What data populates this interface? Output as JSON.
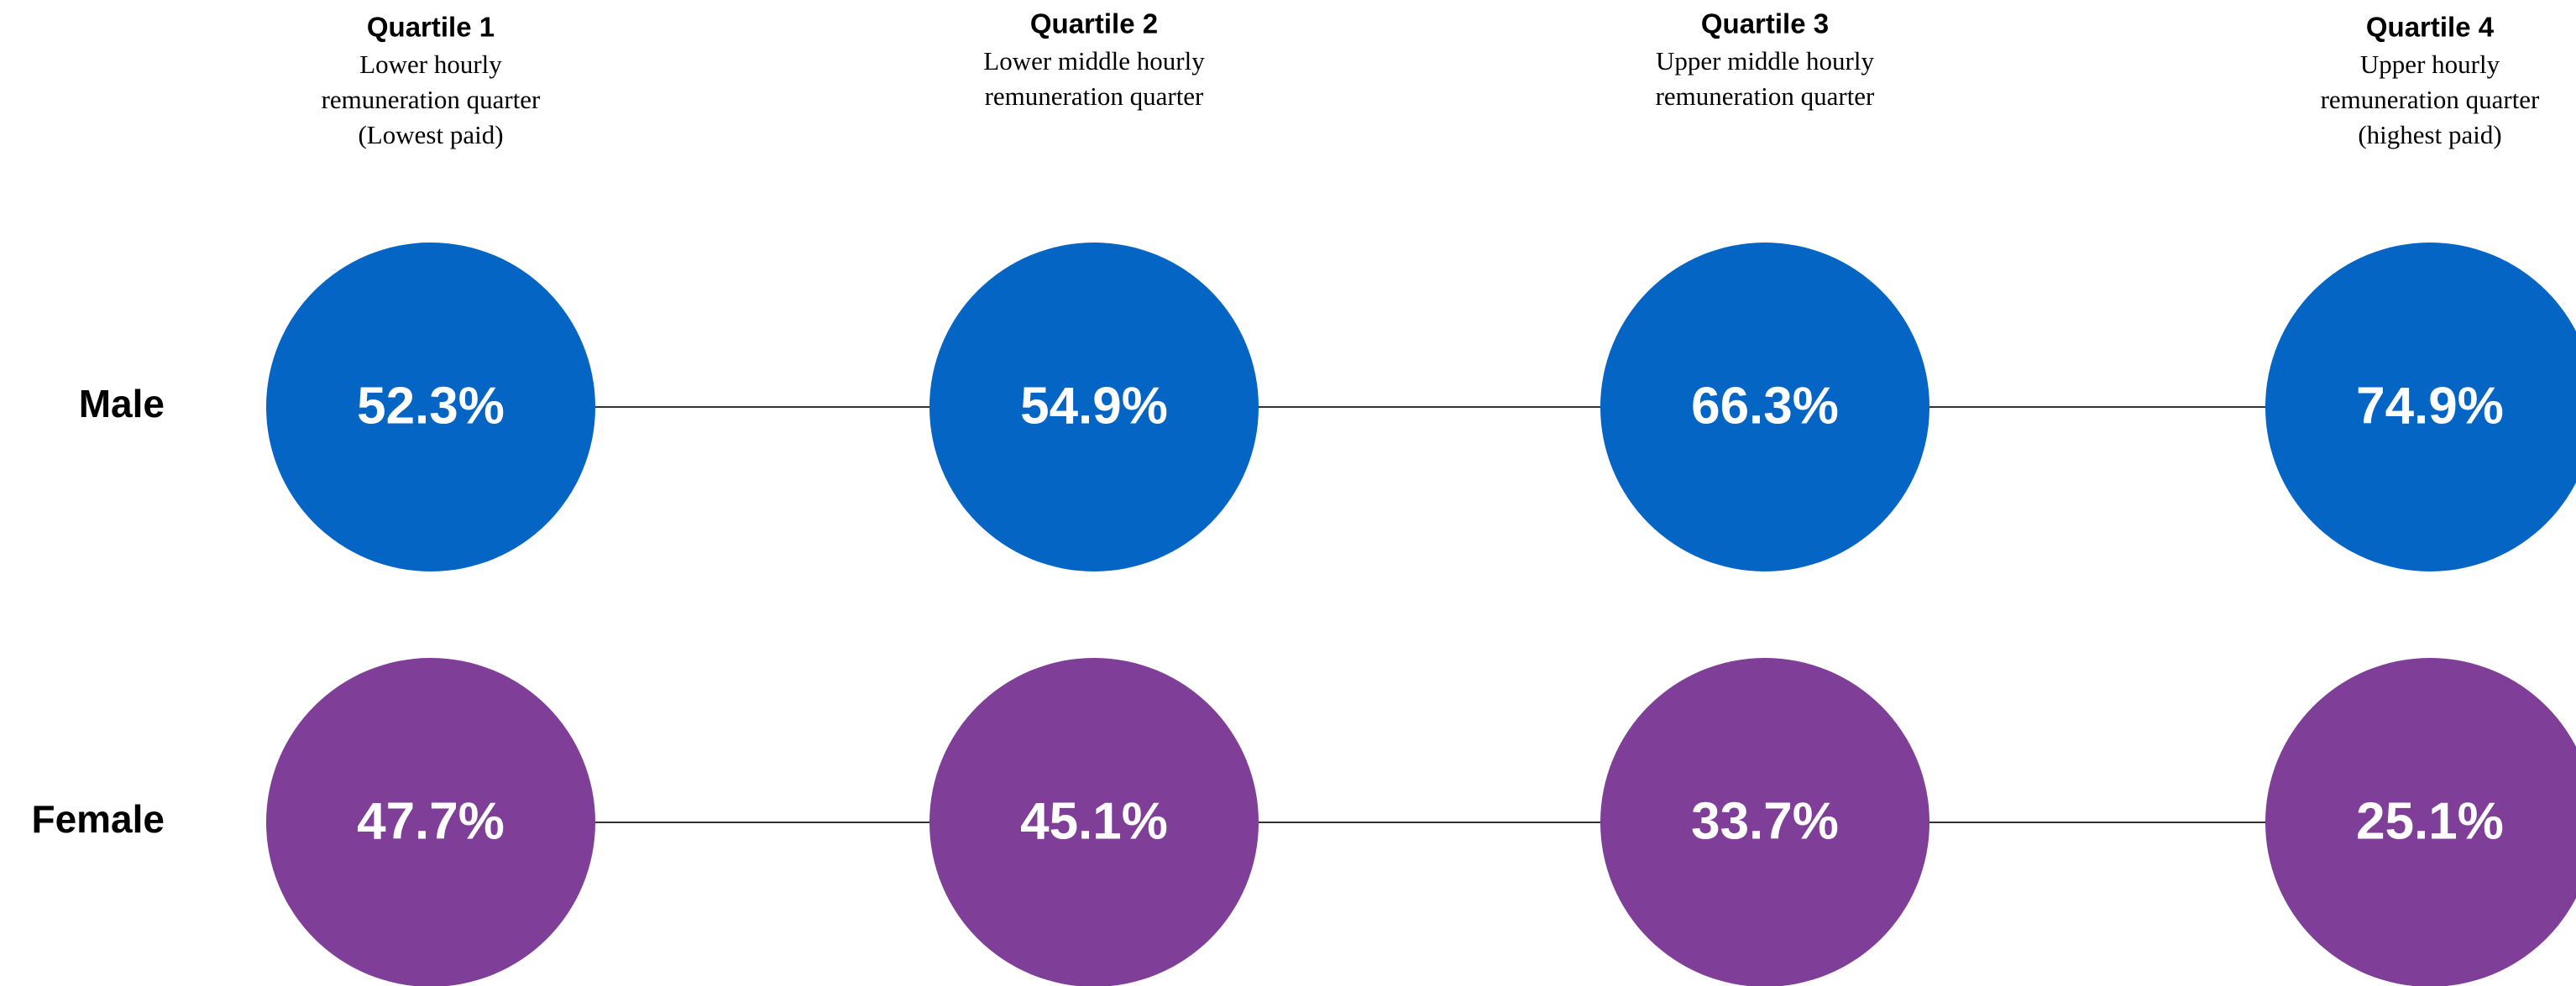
{
  "chart_data": {
    "type": "circle-grid",
    "quartiles": [
      {
        "title": "Quartile 1",
        "description": [
          "Lower hourly",
          "remuneration quarter",
          "(Lowest paid)"
        ]
      },
      {
        "title": "Quartile 2",
        "description": [
          "Lower middle hourly",
          "remuneration quarter"
        ]
      },
      {
        "title": "Quartile 3",
        "description": [
          "Upper middle hourly",
          "remuneration quarter"
        ]
      },
      {
        "title": "Quartile 4",
        "description": [
          "Upper hourly",
          "remuneration quarter",
          "(highest paid)"
        ]
      }
    ],
    "series": [
      {
        "name": "Male",
        "color": "#0565c4",
        "values": [
          52.3,
          54.9,
          66.3,
          74.9
        ],
        "value_labels": [
          "52.3%",
          "54.9%",
          "66.3%",
          "74.9%"
        ]
      },
      {
        "name": "Female",
        "color": "#7f3f98",
        "values": [
          47.7,
          45.1,
          33.7,
          25.1
        ],
        "value_labels": [
          "47.7%",
          "45.1%",
          "33.7%",
          "25.1%"
        ]
      }
    ]
  }
}
